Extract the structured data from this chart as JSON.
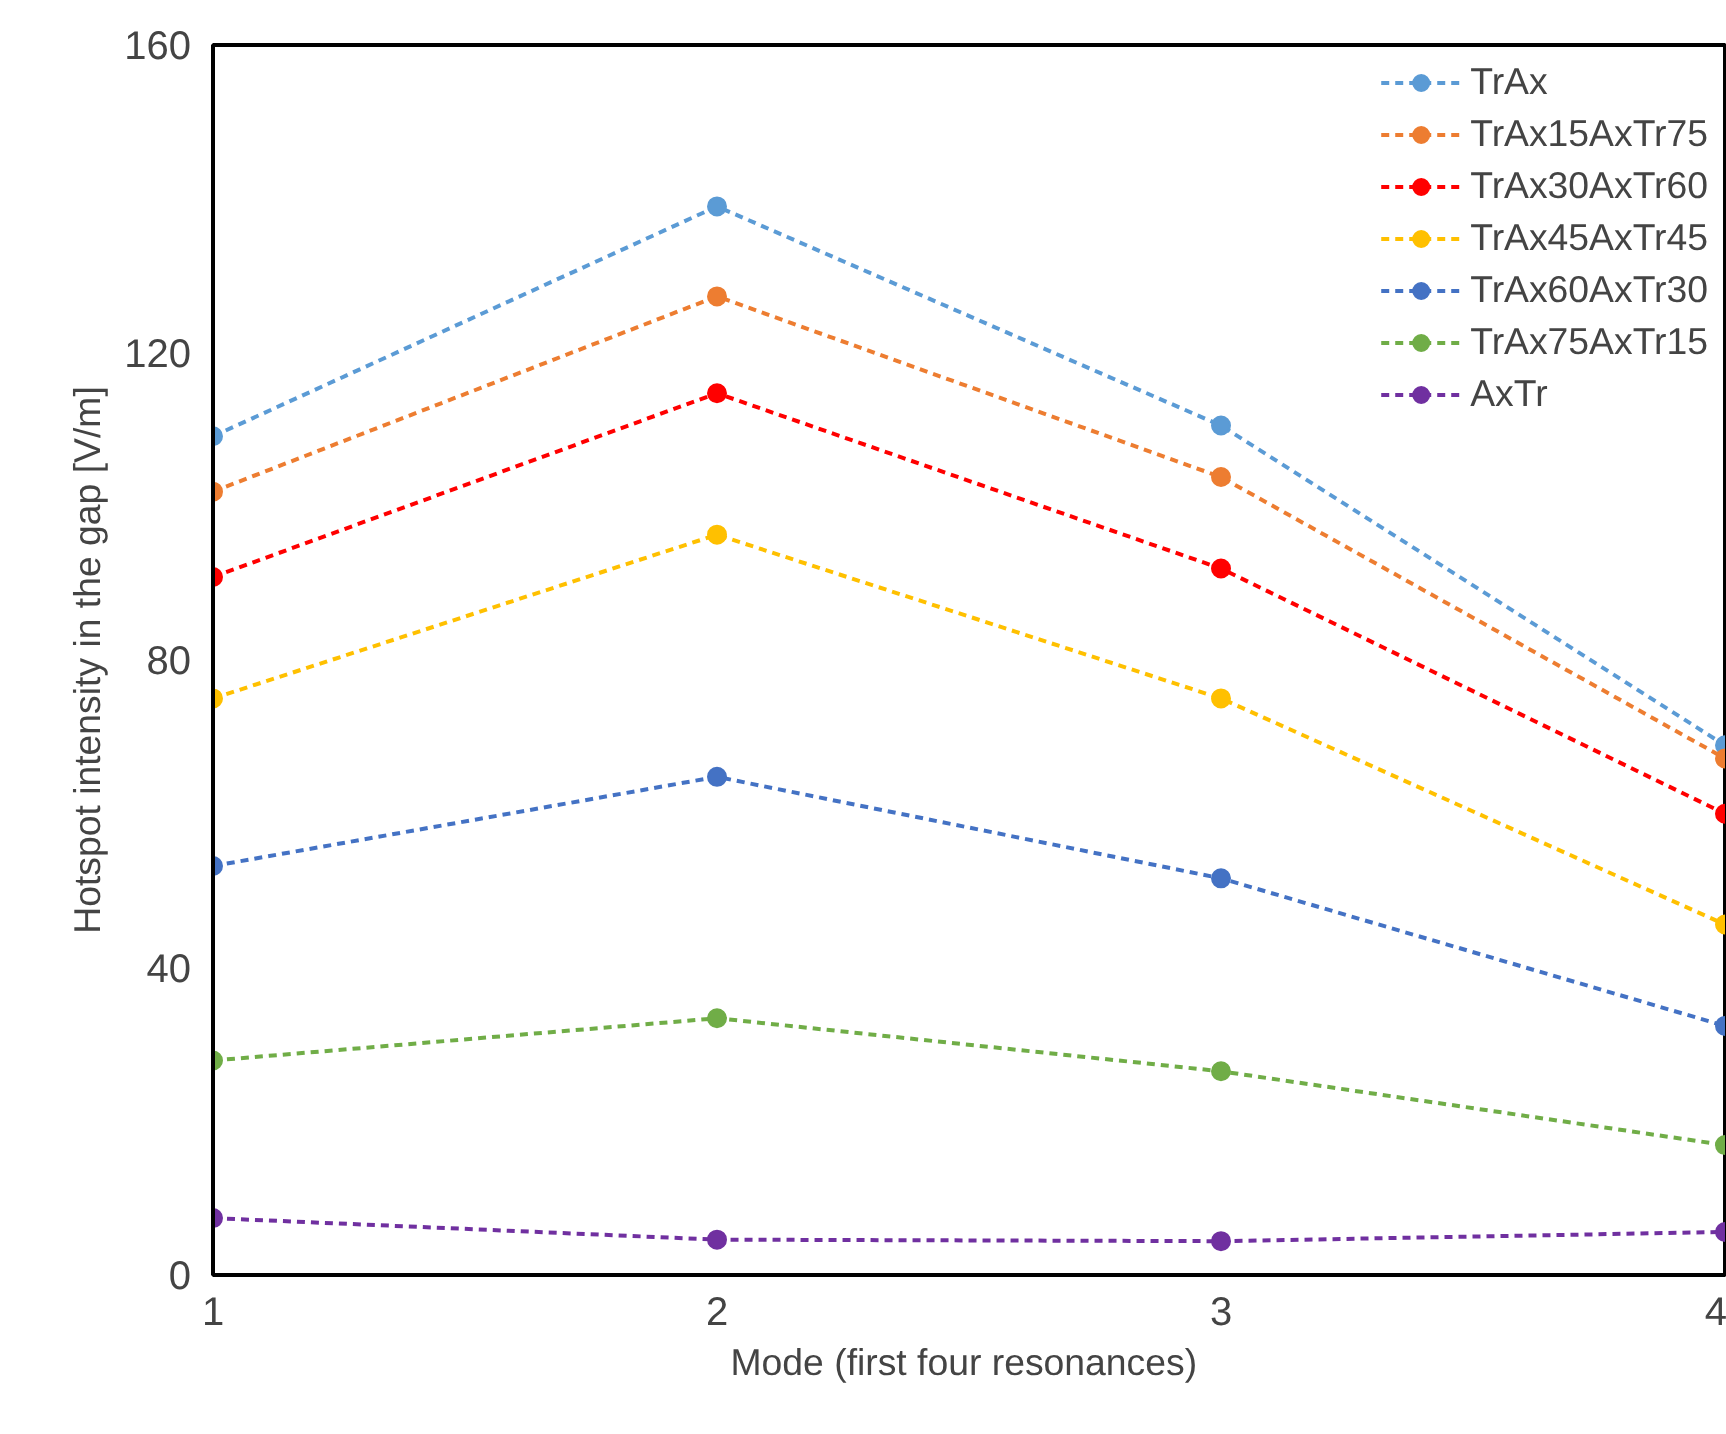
{
  "chart_data": {
    "type": "line",
    "xlabel": "Mode  (first four resonances)",
    "ylabel": "Hotspot intensity in the gap [V/m]",
    "x": [
      1,
      2,
      3,
      4
    ],
    "xlim": [
      1,
      4
    ],
    "xticks": [
      1,
      2,
      3,
      4
    ],
    "ylim": [
      0,
      160
    ],
    "yticks": [
      0,
      40,
      80,
      120,
      160
    ],
    "grid": false,
    "legend": "top right",
    "marker": "circle",
    "line_style": "dashed",
    "series": [
      {
        "name": "TrAx",
        "color": "#5b9bd5",
        "values": [
          109.1,
          139.0,
          110.5,
          68.9
        ]
      },
      {
        "name": "TrAx15AxTr75",
        "color": "#ed7d31",
        "values": [
          101.9,
          127.3,
          103.8,
          67.2
        ]
      },
      {
        "name": "TrAx30AxTr60",
        "color": "#ff0000",
        "values": [
          90.8,
          114.7,
          91.9,
          60.0
        ]
      },
      {
        "name": "TrAx45AxTr45",
        "color": "#ffc000",
        "values": [
          75.0,
          96.3,
          75.0,
          45.6
        ]
      },
      {
        "name": "TrAx60AxTr30",
        "color": "#4472c4",
        "values": [
          53.2,
          64.8,
          51.6,
          32.4
        ]
      },
      {
        "name": "TrAx75AxTr15",
        "color": "#70ad47",
        "values": [
          27.9,
          33.4,
          26.5,
          16.9
        ]
      },
      {
        "name": "AxTr",
        "color": "#7030a0",
        "values": [
          7.4,
          4.6,
          4.4,
          5.6
        ]
      }
    ]
  }
}
